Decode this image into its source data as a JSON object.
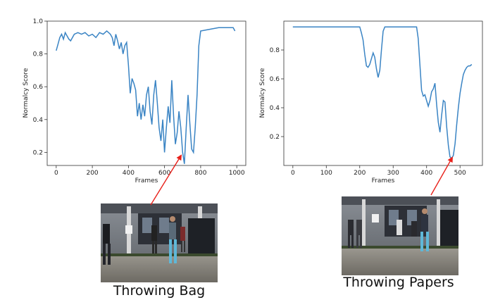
{
  "chart_data": [
    {
      "type": "line",
      "xlabel": "Frames",
      "ylabel": "Normalcy Score",
      "xticks": [
        0,
        200,
        400,
        600,
        800,
        1000
      ],
      "yticks": [
        0.2,
        0.4,
        0.6,
        0.8,
        1.0
      ],
      "xlim": [
        -50,
        1050
      ],
      "ylim": [
        0.12,
        1.0
      ],
      "color": "#3a84c4",
      "grid": false,
      "x": [
        0,
        10,
        20,
        30,
        40,
        50,
        60,
        70,
        80,
        90,
        100,
        120,
        140,
        160,
        180,
        200,
        220,
        240,
        260,
        280,
        300,
        310,
        320,
        330,
        340,
        350,
        360,
        370,
        380,
        390,
        400,
        410,
        420,
        430,
        440,
        450,
        460,
        470,
        480,
        490,
        500,
        510,
        520,
        530,
        540,
        550,
        560,
        570,
        580,
        590,
        600,
        610,
        620,
        630,
        640,
        650,
        660,
        670,
        680,
        690,
        700,
        710,
        720,
        730,
        740,
        750,
        760,
        770,
        780,
        790,
        800,
        850,
        900,
        950,
        980,
        990
      ],
      "y": [
        0.82,
        0.86,
        0.9,
        0.92,
        0.89,
        0.93,
        0.91,
        0.89,
        0.88,
        0.9,
        0.92,
        0.93,
        0.92,
        0.93,
        0.91,
        0.92,
        0.9,
        0.93,
        0.92,
        0.94,
        0.92,
        0.9,
        0.85,
        0.92,
        0.88,
        0.83,
        0.87,
        0.8,
        0.85,
        0.87,
        0.73,
        0.56,
        0.65,
        0.62,
        0.58,
        0.42,
        0.5,
        0.4,
        0.49,
        0.42,
        0.55,
        0.6,
        0.45,
        0.37,
        0.55,
        0.64,
        0.5,
        0.35,
        0.27,
        0.4,
        0.2,
        0.35,
        0.48,
        0.38,
        0.64,
        0.42,
        0.25,
        0.32,
        0.45,
        0.35,
        0.2,
        0.13,
        0.35,
        0.55,
        0.38,
        0.22,
        0.2,
        0.35,
        0.55,
        0.85,
        0.94,
        0.95,
        0.96,
        0.96,
        0.96,
        0.94
      ]
    },
    {
      "type": "line",
      "xlabel": "Frames",
      "ylabel": "Normalcy Score",
      "xticks": [
        0,
        100,
        200,
        300,
        400,
        500
      ],
      "yticks": [
        0.2,
        0.4,
        0.6,
        0.8
      ],
      "xlim": [
        -27,
        567
      ],
      "ylim": [
        0.0,
        1.0
      ],
      "color": "#3a84c4",
      "grid": false,
      "x": [
        0,
        200,
        205,
        210,
        215,
        220,
        225,
        230,
        235,
        240,
        245,
        250,
        255,
        260,
        265,
        270,
        275,
        280,
        370,
        375,
        380,
        385,
        390,
        395,
        400,
        405,
        410,
        415,
        420,
        425,
        430,
        435,
        440,
        445,
        450,
        455,
        460,
        465,
        470,
        475,
        480,
        485,
        490,
        495,
        500,
        505,
        510,
        515,
        520,
        525,
        530,
        535
      ],
      "y": [
        0.96,
        0.96,
        0.92,
        0.87,
        0.77,
        0.69,
        0.68,
        0.7,
        0.74,
        0.78,
        0.75,
        0.67,
        0.61,
        0.66,
        0.8,
        0.93,
        0.96,
        0.96,
        0.96,
        0.88,
        0.7,
        0.52,
        0.48,
        0.49,
        0.45,
        0.41,
        0.45,
        0.51,
        0.53,
        0.57,
        0.42,
        0.3,
        0.23,
        0.35,
        0.45,
        0.44,
        0.27,
        0.14,
        0.06,
        0.05,
        0.07,
        0.15,
        0.28,
        0.4,
        0.5,
        0.57,
        0.63,
        0.66,
        0.68,
        0.69,
        0.69,
        0.7
      ]
    }
  ],
  "captions": {
    "left": "Throwing Bag",
    "right": "Throwing Papers"
  },
  "arrow_color": "#e8201a"
}
